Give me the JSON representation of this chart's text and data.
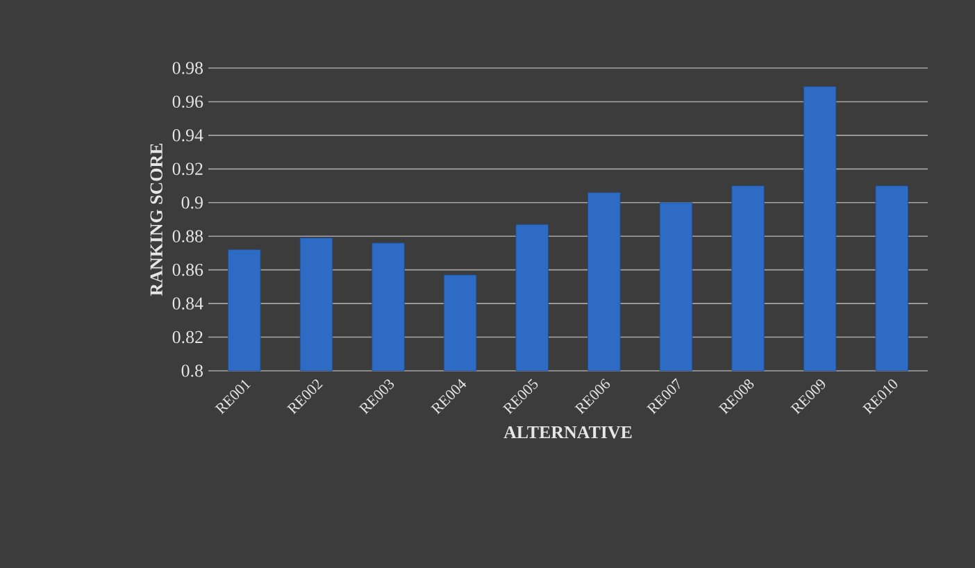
{
  "chart_data": {
    "type": "bar",
    "xlabel": "ALTERNATIVE",
    "ylabel": "RANKING SCORE",
    "categories": [
      "RE001",
      "RE002",
      "RE003",
      "RE004",
      "RE005",
      "RE006",
      "RE007",
      "RE008",
      "RE009",
      "RE010"
    ],
    "values": [
      0.872,
      0.879,
      0.876,
      0.857,
      0.887,
      0.906,
      0.9,
      0.91,
      0.969,
      0.91
    ],
    "color": "#2e6bc4",
    "ylim": [
      0.8,
      0.98
    ],
    "yticks": [
      0.8,
      0.82,
      0.84,
      0.86,
      0.88,
      0.9,
      0.92,
      0.94,
      0.96,
      0.98
    ],
    "grid": "y"
  }
}
